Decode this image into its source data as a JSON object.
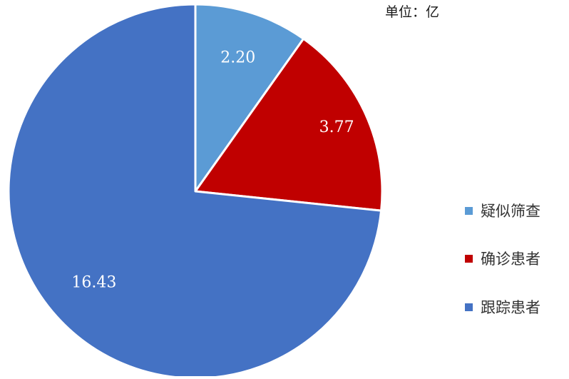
{
  "unit_label": "单位：亿",
  "chart_data": {
    "type": "pie",
    "title": "",
    "unit": "单位：亿",
    "start_angle": "12 o'clock",
    "direction": "clockwise",
    "legend_position": "right",
    "slices": [
      {
        "name": "疑似筛查",
        "value": 2.2,
        "label": "2.20",
        "color": "#5b9bd5"
      },
      {
        "name": "确诊患者",
        "value": 3.77,
        "label": "3.77",
        "color": "#c00000"
      },
      {
        "name": "跟踪患者",
        "value": 16.43,
        "label": "16.43",
        "color": "#4472c4"
      }
    ]
  },
  "colors": {
    "slice_border": "#ffffff",
    "data_label": "#ffffff",
    "legend_text": "#333333"
  }
}
